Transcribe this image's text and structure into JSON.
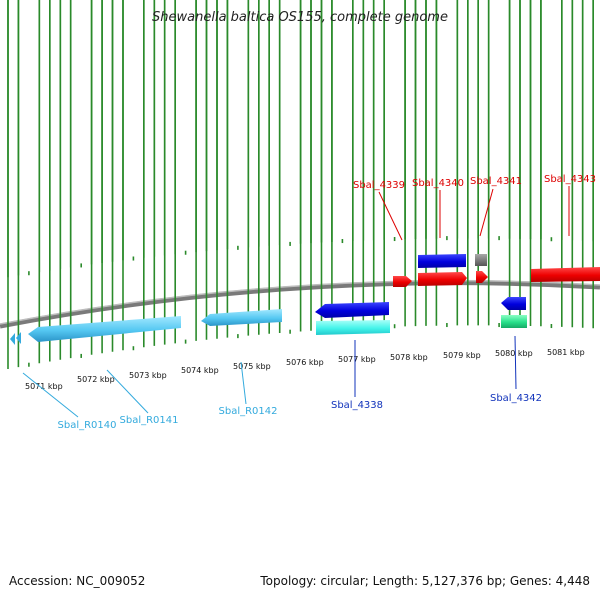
{
  "title": "Shewanella baltica OS155, complete genome",
  "footer": {
    "accession": "Accession: NC_009052",
    "summary": "Topology: circular; Length: 5,127,376 bp; Genes: 4,448"
  },
  "colors": {
    "backbone": "#8c8c8c",
    "tick": "#2a8a2a",
    "forward_red": "#ee1111",
    "forward_blue": "#1111dd",
    "reverse_blue": "#1111dd",
    "reverse_cyan": "#33ccee",
    "rrna_light_blue": "#44bbee",
    "gray_feature": "#777777",
    "green_feature": "#22dd88",
    "label_red": "#dd0000",
    "label_dark_blue": "#1133bb",
    "label_light_blue": "#33aadd"
  },
  "scale_labels": [
    "5071 kbp",
    "5072 kbp",
    "5073 kbp",
    "5074 kbp",
    "5075 kbp",
    "5076 kbp",
    "5077 kbp",
    "5078 kbp",
    "5079 kbp",
    "5080 kbp",
    "5081 kbp"
  ],
  "gene_labels": {
    "top": [
      "Sbal_4339",
      "Sbal_4340",
      "Sbal_4341",
      "Sbal_4343"
    ],
    "bottom": [
      "Sbal_R0140",
      "Sbal_R0141",
      "Sbal_R0142",
      "Sbal_4338",
      "Sbal_4342"
    ]
  }
}
